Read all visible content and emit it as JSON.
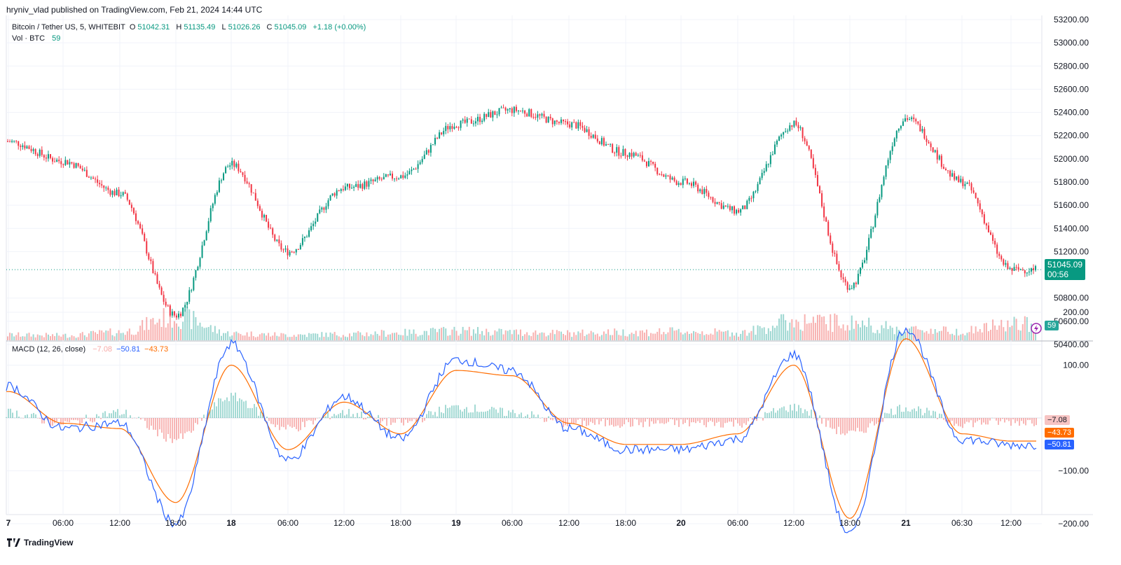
{
  "header": {
    "publish_line": "hryniv_vlad published on TradingView.com, Feb 21, 2024 14:44 UTC"
  },
  "legend": {
    "symbol": "Bitcoin / Tether US, 5, WHITEBIT",
    "o_label": "O",
    "o_value": "51042.31",
    "h_label": "H",
    "h_value": "51135.49",
    "l_label": "L",
    "l_value": "51026.26",
    "c_label": "C",
    "c_value": "51045.09",
    "change": "+1.18 (+0.00%)",
    "vol_label": "Vol · BTC",
    "vol_value": "59",
    "macd_label": "MACD (12, 26, close)",
    "macd_hist": "−7.08",
    "macd_line": "−50.81",
    "macd_signal": "−43.73"
  },
  "price_scale": {
    "ticks": [
      "53200.00",
      "53000.00",
      "52800.00",
      "52600.00",
      "52400.00",
      "52200.00",
      "52000.00",
      "51800.00",
      "51600.00",
      "51400.00",
      "51200.00",
      "50800.00",
      "50600.00",
      "50400.00"
    ],
    "last_price": "51045.09",
    "countdown": "00:56",
    "volume_badge": "59"
  },
  "macd_scale": {
    "ticks": [
      "200.00",
      "100.00",
      "−100.00",
      "−200.00"
    ],
    "hist_badge": "−7.08",
    "signal_badge": "−43.73",
    "macd_badge": "−50.81"
  },
  "time_axis": {
    "labels": [
      "7",
      "06:00",
      "12:00",
      "18:00",
      "18",
      "06:00",
      "12:00",
      "18:00",
      "19",
      "06:00",
      "12:00",
      "18:00",
      "20",
      "06:00",
      "12:00",
      "18:00",
      "21",
      "06:30",
      "12:00"
    ]
  },
  "colors": {
    "up": "#089981",
    "down": "#f23645",
    "macd": "#2962ff",
    "signal": "#ff6d00",
    "hist_up": "#26a69a",
    "hist_down": "#ef5350"
  },
  "chart_data": {
    "type": "candlestick",
    "symbol": "Bitcoin / Tether US",
    "interval": "5",
    "exchange": "WHITEBIT",
    "ylim": [
      50400,
      53200
    ],
    "x": [
      "Feb 17 00:00",
      "Feb 17 06:00",
      "Feb 17 12:00",
      "Feb 17 18:00",
      "Feb 18 00:00",
      "Feb 18 06:00",
      "Feb 18 12:00",
      "Feb 18 18:00",
      "Feb 19 00:00",
      "Feb 19 06:00",
      "Feb 19 12:00",
      "Feb 19 18:00",
      "Feb 20 00:00",
      "Feb 20 06:00",
      "Feb 20 12:00",
      "Feb 20 18:00",
      "Feb 21 00:00",
      "Feb 21 06:30",
      "Feb 21 12:00"
    ],
    "series": [
      {
        "name": "Close",
        "values": [
          52150,
          51980,
          51700,
          50650,
          51950,
          51200,
          51750,
          51850,
          52300,
          52420,
          52300,
          52050,
          51800,
          51550,
          52300,
          50900,
          52350,
          51800,
          51045.09
        ]
      },
      {
        "name": "Vol · BTC",
        "values": [
          20,
          18,
          30,
          90,
          25,
          20,
          22,
          28,
          35,
          30,
          26,
          30,
          32,
          28,
          70,
          65,
          40,
          35,
          59
        ]
      },
      {
        "name": "MACD",
        "values": [
          60,
          -20,
          -10,
          -200,
          140,
          -80,
          40,
          -40,
          110,
          90,
          -20,
          -60,
          -60,
          -40,
          120,
          -220,
          170,
          -40,
          -50.81
        ]
      },
      {
        "name": "Signal",
        "values": [
          50,
          -10,
          -20,
          -160,
          100,
          -60,
          30,
          -30,
          90,
          80,
          -10,
          -50,
          -50,
          -30,
          100,
          -190,
          150,
          -30,
          -43.73
        ]
      }
    ]
  }
}
